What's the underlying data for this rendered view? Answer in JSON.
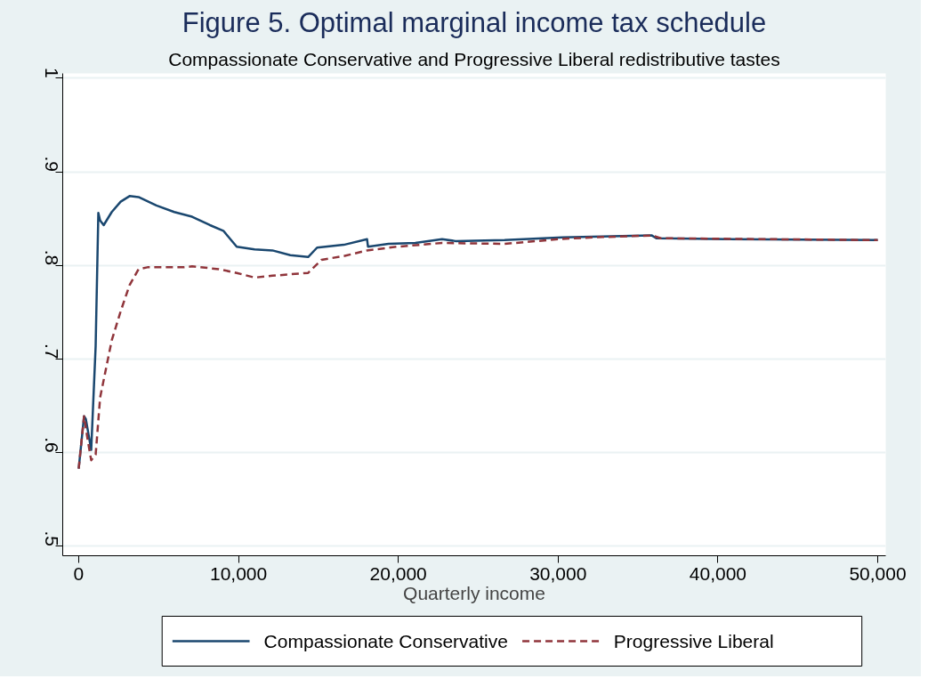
{
  "chart_data": {
    "type": "line",
    "title": "Figure 5. Optimal marginal income tax schedule",
    "subtitle": "Compassionate Conservative and Progressive Liberal redistributive tastes",
    "xlabel": "Quarterly income",
    "xlim": [
      -1000,
      50500
    ],
    "ylim": [
      0.49,
      1.005
    ],
    "xticks": [
      {
        "value": 0,
        "label": "0"
      },
      {
        "value": 10000,
        "label": "10,000"
      },
      {
        "value": 20000,
        "label": "20,000"
      },
      {
        "value": 30000,
        "label": "30,000"
      },
      {
        "value": 40000,
        "label": "40,000"
      },
      {
        "value": 50000,
        "label": "50,000"
      }
    ],
    "yticks": [
      {
        "value": 0.5,
        "label": ".5"
      },
      {
        "value": 0.6,
        "label": ".6"
      },
      {
        "value": 0.7,
        "label": ".7"
      },
      {
        "value": 0.8,
        "label": ".8"
      },
      {
        "value": 0.9,
        "label": ".9"
      },
      {
        "value": 1,
        "label": "1"
      }
    ],
    "grid": "y",
    "legend": "bottom",
    "series": [
      {
        "name": "Compassionate Conservative",
        "color": "#1a476f",
        "line_style": "solid",
        "x": [
          0,
          335,
          447,
          782,
          1061,
          1229,
          1341,
          1564,
          2067,
          2626,
          3184,
          3743,
          4860,
          5978,
          7095,
          8212,
          9050,
          9888,
          11006,
          12123,
          13240,
          14358,
          14916,
          16592,
          18045,
          18101,
          19385,
          21061,
          22737,
          23575,
          26648,
          30281,
          35866,
          36145,
          40615,
          50000
        ],
        "values": [
          0.583,
          0.639,
          0.636,
          0.603,
          0.714,
          0.856,
          0.848,
          0.843,
          0.857,
          0.868,
          0.874,
          0.873,
          0.864,
          0.857,
          0.852,
          0.843,
          0.837,
          0.82,
          0.817,
          0.816,
          0.811,
          0.809,
          0.819,
          0.822,
          0.828,
          0.82,
          0.823,
          0.824,
          0.828,
          0.826,
          0.827,
          0.83,
          0.832,
          0.829,
          0.828,
          0.827
        ]
      },
      {
        "name": "Progressive Liberal",
        "color": "#90353b",
        "line_style": "dashed",
        "x": [
          0,
          335,
          559,
          782,
          1061,
          1341,
          2067,
          2626,
          3184,
          3743,
          4302,
          6537,
          7095,
          8771,
          9888,
          11006,
          12123,
          14358,
          15196,
          16592,
          18045,
          19945,
          22737,
          26648,
          30002,
          32237,
          35866,
          36425,
          50000
        ],
        "values": [
          0.583,
          0.639,
          0.614,
          0.592,
          0.598,
          0.659,
          0.72,
          0.751,
          0.779,
          0.796,
          0.798,
          0.798,
          0.799,
          0.796,
          0.792,
          0.787,
          0.789,
          0.792,
          0.806,
          0.81,
          0.816,
          0.82,
          0.824,
          0.823,
          0.828,
          0.83,
          0.832,
          0.829,
          0.827
        ]
      }
    ]
  }
}
